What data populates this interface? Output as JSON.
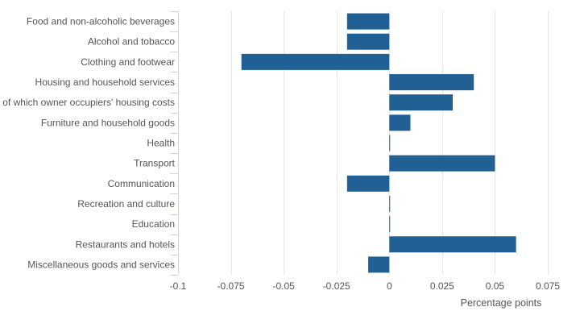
{
  "chart_data": {
    "type": "bar",
    "orientation": "horizontal",
    "categories": [
      "Food and non-alcoholic beverages",
      "Alcohol and tobacco",
      "Clothing and footwear",
      "Housing and household services",
      "of which owner occupiers' housing costs",
      "Furniture and household goods",
      "Health",
      "Transport",
      "Communication",
      "Recreation and culture",
      "Education",
      "Restaurants and hotels",
      "Miscellaneous goods and services"
    ],
    "values": [
      -0.02,
      -0.02,
      -0.07,
      0.04,
      0.03,
      0.01,
      0,
      0.05,
      -0.02,
      0,
      0,
      0.06,
      -0.01
    ],
    "xlim": [
      -0.1,
      0.075
    ],
    "xticks": [
      -0.1,
      -0.075,
      -0.05,
      -0.025,
      0,
      0.025,
      0.05,
      0.075
    ],
    "xtick_labels": [
      "-0.1",
      "-0.075",
      "-0.05",
      "-0.025",
      "0",
      "0.025",
      "0.05",
      "0.075"
    ],
    "xlabel": "Percentage points",
    "title": "",
    "grid": true,
    "colors": {
      "bar": "#206095",
      "grid": "#e6e6e6",
      "axis": "#ccd6eb"
    }
  }
}
